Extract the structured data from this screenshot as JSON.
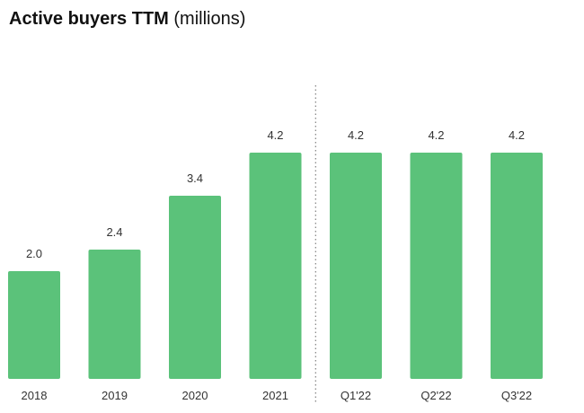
{
  "title": "Active buyers TTM",
  "title_unit": "(millions)",
  "colors": {
    "bar": "#5bc27a",
    "text": "#333333",
    "divider": "#666666"
  },
  "chart_data": {
    "type": "bar",
    "title": "Active buyers TTM (millions)",
    "xlabel": "",
    "ylabel": "",
    "categories": [
      "2018",
      "2019",
      "2020",
      "2021",
      "Q1'22",
      "Q2'22",
      "Q3'22"
    ],
    "values": [
      2.0,
      2.4,
      3.4,
      4.2,
      4.2,
      4.2,
      4.2
    ],
    "data_labels": [
      "2.0",
      "2.4",
      "3.4",
      "4.2",
      "4.2",
      "4.2",
      "4.2"
    ],
    "divider_after_category": "2021",
    "grid": false,
    "legend": "none"
  }
}
